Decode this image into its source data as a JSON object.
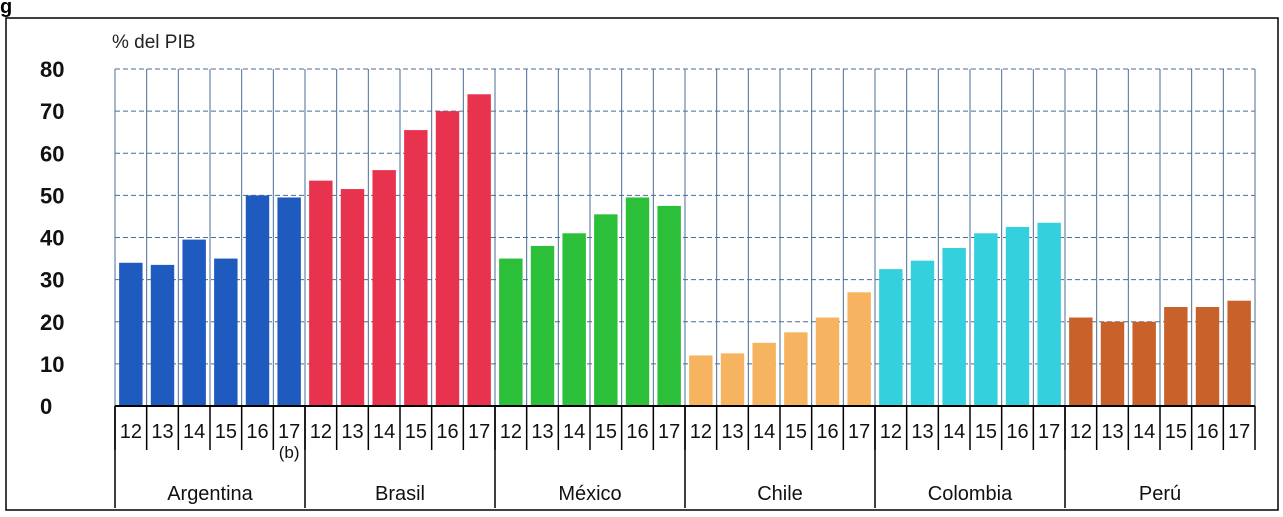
{
  "figure_mark": "g",
  "chart_data": {
    "type": "bar",
    "ylabel": "% del PIB",
    "ylim": [
      0,
      80
    ],
    "yticks": [
      "0",
      "10",
      "20",
      "30",
      "40",
      "50",
      "60",
      "70",
      "80"
    ],
    "grid": true,
    "groups": [
      {
        "name": "Argentina",
        "color": "#1f5bbf",
        "categories": [
          "12",
          "13",
          "14",
          "15",
          "16",
          "17"
        ],
        "values": [
          34,
          33.5,
          39.5,
          35,
          50,
          49.5
        ],
        "note": {
          "index": 5,
          "text": "(b)"
        }
      },
      {
        "name": "Brasil",
        "color": "#e8334f",
        "categories": [
          "12",
          "13",
          "14",
          "15",
          "16",
          "17"
        ],
        "values": [
          53.5,
          51.5,
          56,
          65.5,
          70,
          74
        ]
      },
      {
        "name": "México",
        "color": "#2bbf3a",
        "categories": [
          "12",
          "13",
          "14",
          "15",
          "16",
          "17"
        ],
        "values": [
          35,
          38,
          41,
          45.5,
          49.5,
          47.5
        ]
      },
      {
        "name": "Chile",
        "color": "#f7b460",
        "categories": [
          "12",
          "13",
          "14",
          "15",
          "16",
          "17"
        ],
        "values": [
          12,
          12.5,
          15,
          17.5,
          21,
          27
        ]
      },
      {
        "name": "Colombia",
        "color": "#35d0de",
        "categories": [
          "12",
          "13",
          "14",
          "15",
          "16",
          "17"
        ],
        "values": [
          32.5,
          34.5,
          37.5,
          41,
          42.5,
          43.5
        ]
      },
      {
        "name": "Perú",
        "color": "#c9612a",
        "categories": [
          "12",
          "13",
          "14",
          "15",
          "16",
          "17"
        ],
        "values": [
          21,
          20,
          20,
          23.5,
          23.5,
          25
        ]
      }
    ]
  }
}
